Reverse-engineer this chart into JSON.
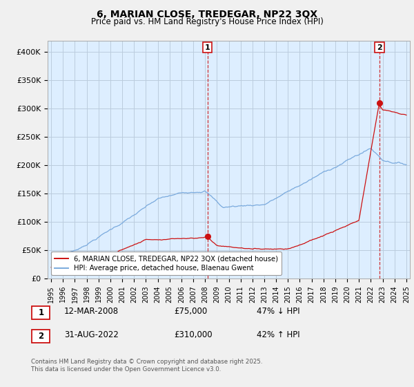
{
  "title": "6, MARIAN CLOSE, TREDEGAR, NP22 3QX",
  "subtitle": "Price paid vs. HM Land Registry's House Price Index (HPI)",
  "ylim": [
    0,
    420000
  ],
  "yticks": [
    0,
    50000,
    100000,
    150000,
    200000,
    250000,
    300000,
    350000,
    400000
  ],
  "ytick_labels": [
    "£0",
    "£50K",
    "£100K",
    "£150K",
    "£200K",
    "£250K",
    "£300K",
    "£350K",
    "£400K"
  ],
  "hpi_color": "#7aaadd",
  "price_color": "#cc1111",
  "vline_color": "#cc1111",
  "transaction1_year": 2008.21,
  "transaction1_price": 75000,
  "transaction1_date": "12-MAR-2008",
  "transaction1_hpi_txt": "47% ↓ HPI",
  "transaction2_year": 2022.67,
  "transaction2_price": 310000,
  "transaction2_date": "31-AUG-2022",
  "transaction2_hpi_txt": "42% ↑ HPI",
  "legend_line1": "6, MARIAN CLOSE, TREDEGAR, NP22 3QX (detached house)",
  "legend_line2": "HPI: Average price, detached house, Blaenau Gwent",
  "footnote": "Contains HM Land Registry data © Crown copyright and database right 2025.\nThis data is licensed under the Open Government Licence v3.0.",
  "background_color": "#f0f0f0",
  "plot_bg_color": "#ddeeff",
  "grid_color": "#bbccdd",
  "x_start_year": 1995,
  "x_end_year": 2025
}
